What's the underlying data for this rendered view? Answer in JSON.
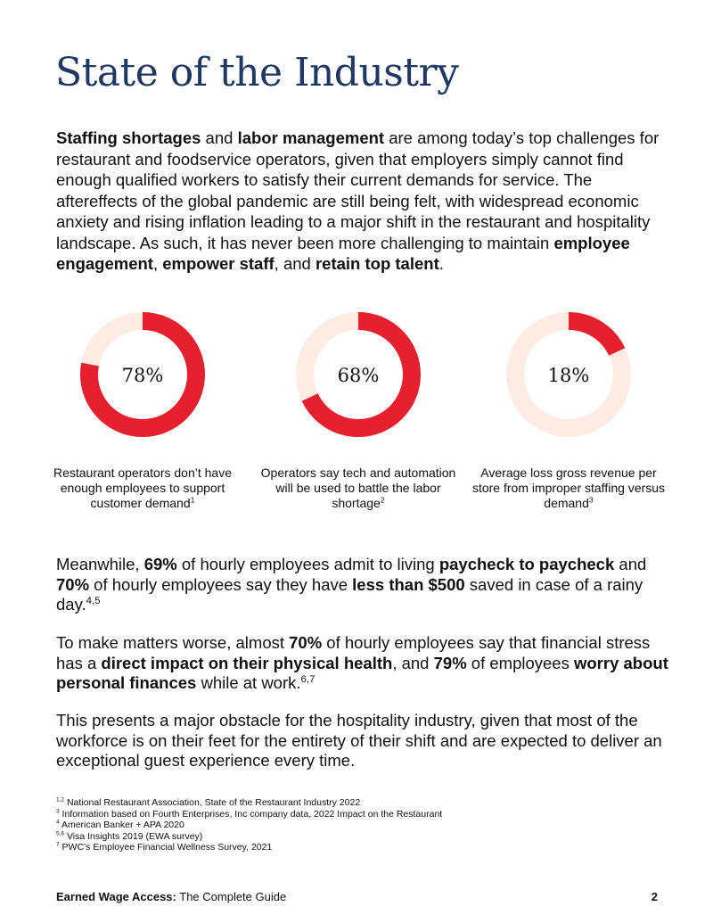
{
  "title": "State of the Industry",
  "intro": {
    "b1": "Staffing shortages",
    "t1": " and ",
    "b2": "labor management",
    "t2": " are among today’s top challenges for restaurant and foodservice operators, given that employers simply cannot find enough qualified workers to satisfy their current demands for service. The aftereffects of the global pandemic are still being felt, with widespread economic anxiety and rising inflation leading to a major shift in the restaurant and hospitality landscape. As such, it has never been more challenging to maintain ",
    "b3": "employee engagement",
    "t3": ", ",
    "b4": "empower staff",
    "t4": ", and ",
    "b5": "retain top talent",
    "t5": "."
  },
  "stats": [
    {
      "percent": 78,
      "label": "78%",
      "caption": "Restaurant operators don’t have enough employees to support customer demand",
      "ref": "1"
    },
    {
      "percent": 68,
      "label": "68%",
      "caption": "Operators say tech and automation will be used to battle the labor shortage",
      "ref": "2"
    },
    {
      "percent": 18,
      "label": "18%",
      "caption": "Average loss gross revenue per store from improper staffing versus demand",
      "ref": "3"
    }
  ],
  "colors": {
    "ring_fill": "#e5212f",
    "ring_track": "#fdece3",
    "title": "#1e3763"
  },
  "p1": {
    "t1": "Meanwhile, ",
    "b1": "69%",
    "t2": " of hourly employees admit to living ",
    "b2": "paycheck to paycheck",
    "t3": " and ",
    "b3": "70%",
    "t4": " of hourly employees say they have ",
    "b4": "less than $500",
    "t5": " saved in case of a rainy day.",
    "ref": "4,5"
  },
  "p2": {
    "t1": "To make matters worse, almost ",
    "b1": "70%",
    "t2": " of hourly employees say that financial stress has a ",
    "b2": "direct impact on their physical health",
    "t3": ", and ",
    "b3": "79%",
    "t4": " of employees ",
    "b4": "worry about personal finances",
    "t5": " while at work.",
    "ref": "6,7"
  },
  "p3": "This presents a major obstacle for the hospitality industry, given that most of the workforce is on their feet for the entirety of their shift and are expected to deliver an exceptional guest experience every time.",
  "footnotes": [
    {
      "ref": "1,2",
      "text": " National Restaurant Association, State of the Restaurant Industry 2022"
    },
    {
      "ref": "3",
      "text": " Information based on Fourth Enterprises, Inc company data, 2022 Impact on the Restaurant"
    },
    {
      "ref": "4",
      "text": " American Banker + APA 2020"
    },
    {
      "ref": "5,6",
      "text": "  Visa Insights 2019 (EWA survey)"
    },
    {
      "ref": "7",
      "text": " PWC’s Employee Financial Wellness Survey, 2021"
    }
  ],
  "footer": {
    "bold": "Earned Wage Access:",
    "text": " The Complete Guide",
    "page": "2"
  }
}
